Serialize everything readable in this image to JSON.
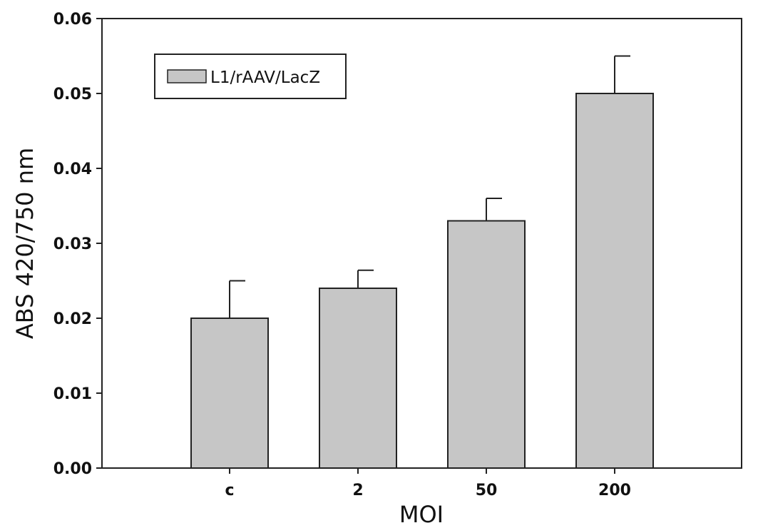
{
  "chart_data": {
    "type": "bar",
    "title": "",
    "xlabel": "MOI",
    "ylabel": "ABS 420/750 nm",
    "categories": [
      "c",
      "2",
      "50",
      "200"
    ],
    "series": [
      {
        "name": "L1/rAAV/LacZ",
        "values": [
          0.02,
          0.024,
          0.033,
          0.05
        ],
        "error_plus": [
          0.005,
          0.0024,
          0.003,
          0.005
        ]
      }
    ],
    "ylim": [
      0,
      0.06
    ],
    "yticks": [
      "0.00",
      "0.01",
      "0.02",
      "0.03",
      "0.04",
      "0.05",
      "0.06"
    ],
    "grid": false,
    "legend_position": "top-left",
    "bar_color": "#c6c6c6"
  }
}
